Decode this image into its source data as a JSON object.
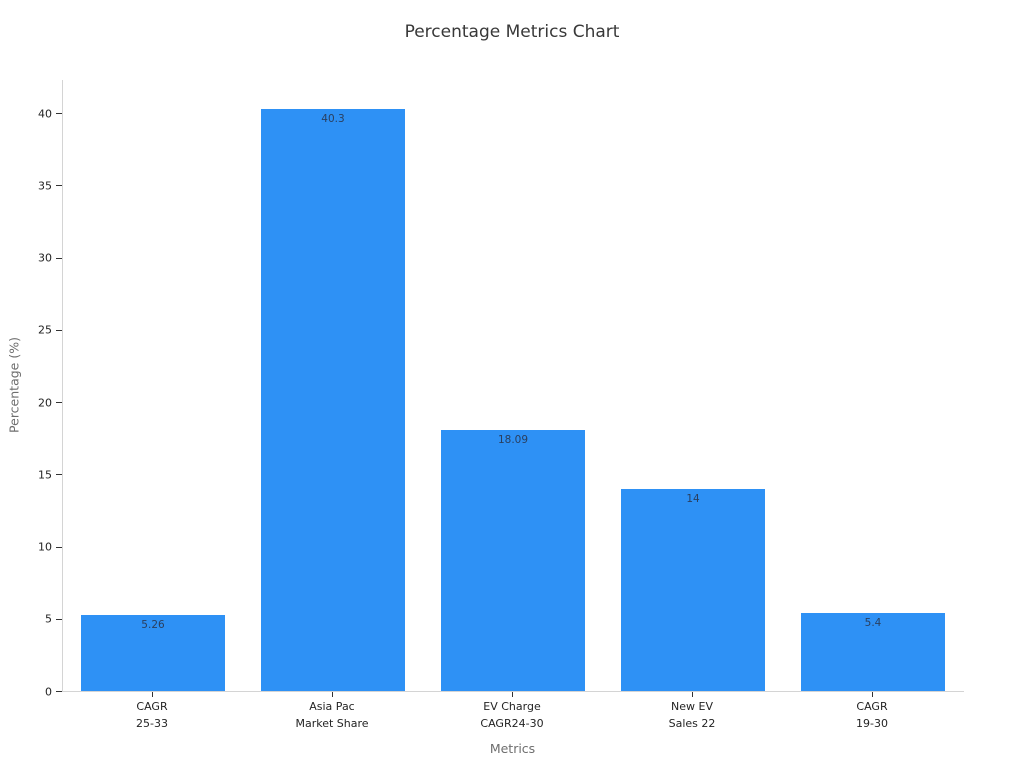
{
  "chart_data": {
    "type": "bar",
    "title": "Percentage Metrics Chart",
    "xlabel": "Metrics",
    "ylabel": "Percentage (%)",
    "categories": [
      [
        "CAGR",
        "25-33"
      ],
      [
        "Asia Pac",
        "Market Share"
      ],
      [
        "EV Charge",
        "CAGR24-30"
      ],
      [
        "New EV",
        "Sales 22"
      ],
      [
        "CAGR",
        "19-30"
      ]
    ],
    "values": [
      5.26,
      40.3,
      18.09,
      14,
      5.4
    ],
    "value_labels": [
      "5.26",
      "40.3",
      "18.09",
      "14",
      "5.4"
    ],
    "yticks": [
      0,
      5,
      10,
      15,
      20,
      25,
      30,
      35,
      40
    ],
    "ylim": [
      0,
      42.3
    ],
    "bar_color": "#2e91f5",
    "value_label_color": "#2a3f5f",
    "axis_line_color": "#d4d4d4",
    "tick_color": "#333333",
    "grid": false,
    "legend": "none",
    "background": "#ffffff"
  }
}
